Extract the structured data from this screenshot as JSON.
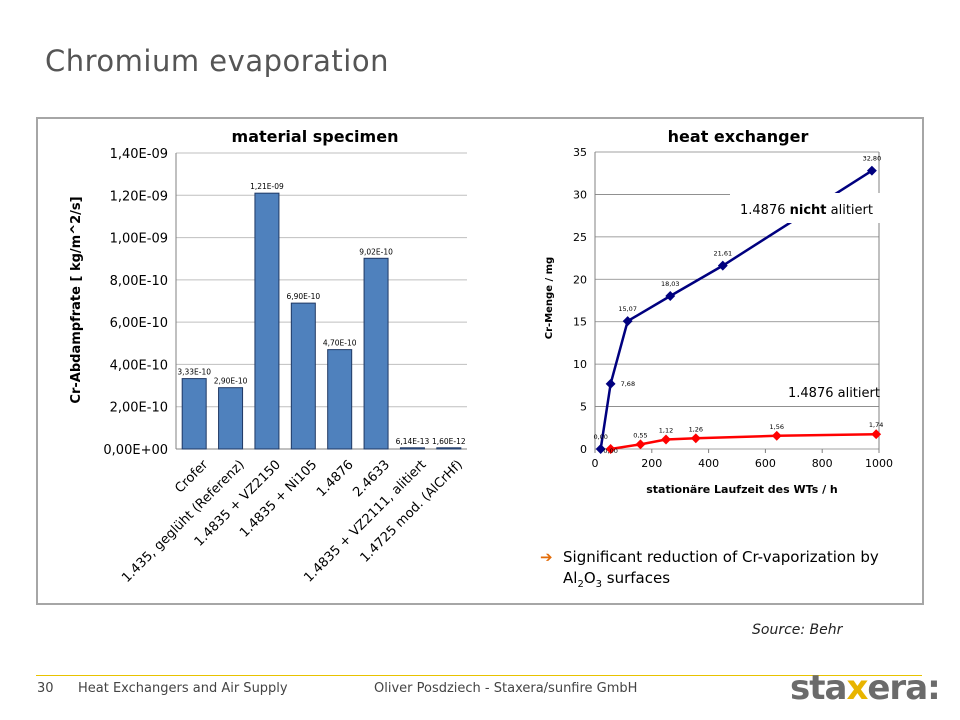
{
  "slide": {
    "title": "Chromium evaporation",
    "source": "Source: Behr",
    "page_number": "30",
    "footer_left": "Heat Exchangers and Air Supply",
    "footer_center": "Oliver Posdziech - Staxera/sunfire GmbH",
    "logo_part1": "sta",
    "logo_part2": "x",
    "logo_part3": "era:",
    "accent_color": "#e8c300",
    "conclusion_arrow": "➔",
    "conclusion_line1": "Significant reduction of Cr-vaporization by",
    "conclusion_line2_a": "Al",
    "conclusion_line2_sub1": "2",
    "conclusion_line2_b": "O",
    "conclusion_line2_sub2": "3",
    "conclusion_line2_c": " surfaces"
  },
  "chart_data": [
    {
      "type": "bar",
      "title": "material specimen",
      "ylabel": "Cr-Abdampfrate [ kg/m^2/s]",
      "xlabel": "",
      "ylim": [
        0,
        1.4e-09
      ],
      "yticks": [
        "0,00E+00",
        "2,00E-10",
        "4,00E-10",
        "6,00E-10",
        "8,00E-10",
        "1,00E-09",
        "1,20E-09",
        "1,40E-09"
      ],
      "categories": [
        "Crofer",
        "1.435, geglüht (Referenz)",
        "1.4835 + VZ2150",
        "1.4835 + Ni105",
        "1.4876",
        "2.4633",
        "1.4835 + VZ2111, alitiert",
        "1.4725 mod. (AlCrHf)"
      ],
      "values": [
        3.33e-10,
        2.9e-10,
        1.21e-09,
        6.9e-10,
        4.7e-10,
        9.02e-10,
        6.14e-13,
        1.6e-12
      ],
      "value_labels": [
        "3,33E-10",
        "2,90E-10",
        "1,21E-09",
        "6,90E-10",
        "4,70E-10",
        "9,02E-10",
        "6,14E-13",
        "1,60E-12"
      ],
      "bar_color": "#4f81bd",
      "grid": true
    },
    {
      "type": "line",
      "title": "heat exchanger",
      "xlabel": "stationäre Laufzeit des WTs / h",
      "ylabel": "Cr-Menge / mg",
      "xlim": [
        0,
        1000
      ],
      "ylim": [
        0,
        35
      ],
      "xticks": [
        "0",
        "200",
        "400",
        "600",
        "800",
        "1000"
      ],
      "yticks": [
        "0",
        "5",
        "10",
        "15",
        "20",
        "25",
        "30",
        "35"
      ],
      "series": [
        {
          "name": "1.4876 nicht alitiert",
          "name_a": "1.4876 ",
          "name_b": "nicht",
          "name_c": " alitiert",
          "color": "#00007f",
          "x": [
            20,
            55,
            115,
            265,
            450,
            975
          ],
          "y": [
            0,
            7.68,
            15.07,
            18.03,
            21.61,
            32.8
          ],
          "labels": [
            "0,00",
            "7,68",
            "15,07",
            "18,03",
            "21,61",
            "32,80"
          ]
        },
        {
          "name": "1.4876 alitiert",
          "color": "#ff0000",
          "x": [
            55,
            160,
            250,
            355,
            640,
            990
          ],
          "y": [
            0,
            0.55,
            1.12,
            1.26,
            1.56,
            1.74
          ],
          "labels": [
            "0,00",
            "0,55",
            "1,12",
            "1,26",
            "1,56",
            "1,74"
          ]
        }
      ],
      "grid": true
    }
  ]
}
